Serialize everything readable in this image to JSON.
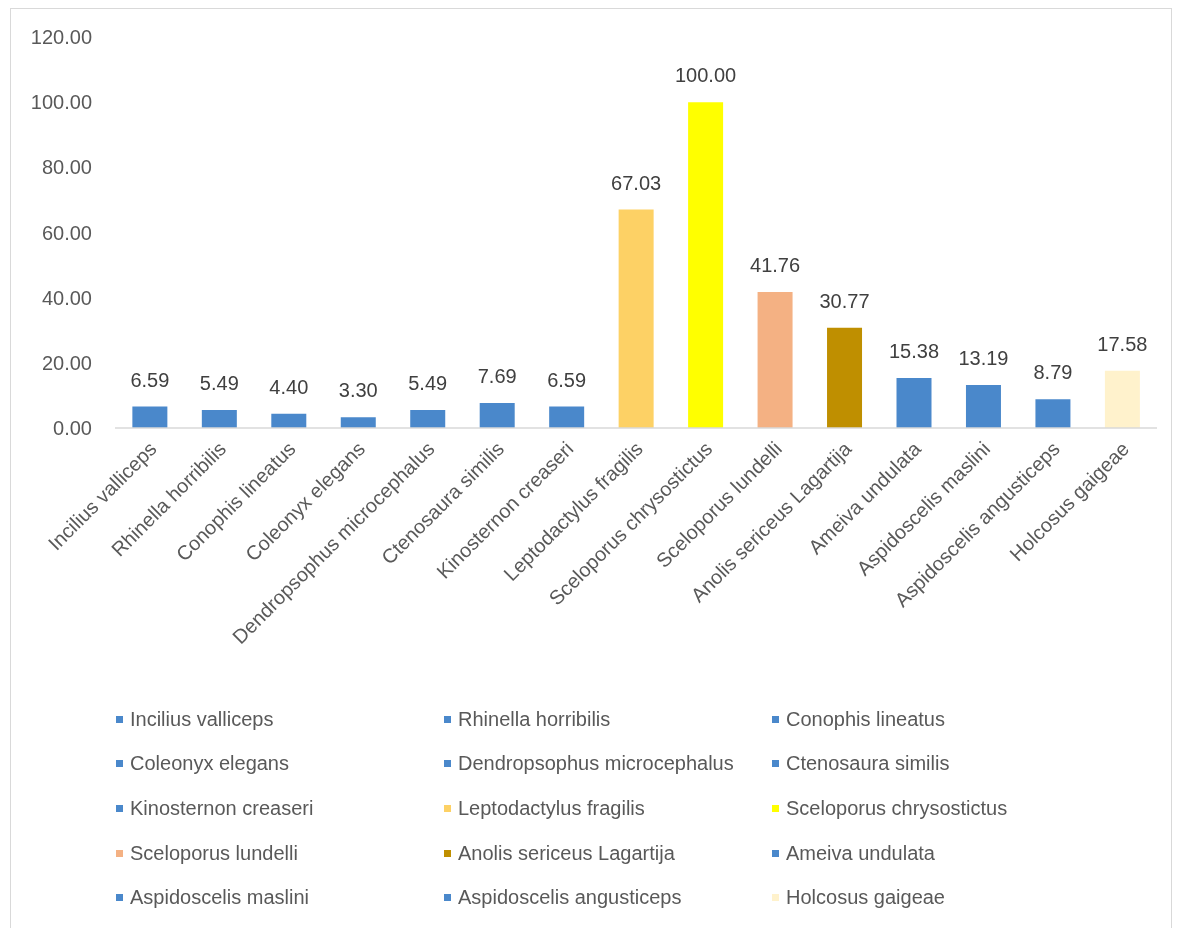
{
  "chart_data": {
    "type": "bar",
    "stacked": true,
    "categories": [
      "Incilius valliceps",
      "Rhinella horribilis",
      "Conophis lineatus",
      "Coleonyx elegans",
      "Dendropsophus microcephalus",
      "Ctenosaura similis",
      "Kinosternon creaseri",
      "Leptodactylus fragilis",
      "Sceloporus chrysostictus",
      "Sceloporus lundelli",
      "Anolis sericeus Lagartija",
      "Ameiva undulata",
      "Aspidoscelis maslini",
      "Aspidoscelis angusticeps",
      "Holcosus gaigeae"
    ],
    "series": [
      {
        "name": "Incilius valliceps",
        "color": "#4a88cb",
        "values": [
          6.59,
          null,
          null,
          null,
          null,
          null,
          null,
          null,
          null,
          null,
          null,
          null,
          null,
          null,
          null
        ],
        "value_labels": [
          "6.59",
          null,
          null,
          null,
          null,
          null,
          null,
          null,
          null,
          null,
          null,
          null,
          null,
          null,
          null
        ]
      },
      {
        "name": "Rhinella horribilis",
        "color": "#4a88cb",
        "values": [
          null,
          5.49,
          null,
          null,
          null,
          null,
          null,
          null,
          null,
          null,
          null,
          null,
          null,
          null,
          null
        ],
        "value_labels": [
          null,
          "5.49",
          null,
          null,
          null,
          null,
          null,
          null,
          null,
          null,
          null,
          null,
          null,
          null,
          null
        ]
      },
      {
        "name": "Conophis lineatus",
        "color": "#4a88cb",
        "values": [
          null,
          null,
          4.4,
          null,
          null,
          null,
          null,
          null,
          null,
          null,
          null,
          null,
          null,
          null,
          null
        ],
        "value_labels": [
          null,
          null,
          "4.40",
          null,
          null,
          null,
          null,
          null,
          null,
          null,
          null,
          null,
          null,
          null,
          null
        ]
      },
      {
        "name": "Coleonyx elegans",
        "color": "#4a88cb",
        "values": [
          null,
          null,
          null,
          3.3,
          null,
          null,
          null,
          null,
          null,
          null,
          null,
          null,
          null,
          null,
          null
        ],
        "value_labels": [
          null,
          null,
          null,
          "3.30",
          null,
          null,
          null,
          null,
          null,
          null,
          null,
          null,
          null,
          null,
          null
        ]
      },
      {
        "name": "Dendropsophus microcephalus",
        "color": "#4a88cb",
        "values": [
          null,
          null,
          null,
          null,
          5.49,
          null,
          null,
          null,
          null,
          null,
          null,
          null,
          null,
          null,
          null
        ],
        "value_labels": [
          null,
          null,
          null,
          null,
          "5.49",
          null,
          null,
          null,
          null,
          null,
          null,
          null,
          null,
          null,
          null
        ]
      },
      {
        "name": "Ctenosaura similis",
        "color": "#4a88cb",
        "values": [
          null,
          null,
          null,
          null,
          null,
          7.69,
          null,
          null,
          null,
          null,
          null,
          null,
          null,
          null,
          null
        ],
        "value_labels": [
          null,
          null,
          null,
          null,
          null,
          "7.69",
          null,
          null,
          null,
          null,
          null,
          null,
          null,
          null,
          null
        ]
      },
      {
        "name": "Kinosternon creaseri",
        "color": "#4a88cb",
        "values": [
          null,
          null,
          null,
          null,
          null,
          null,
          6.59,
          null,
          null,
          null,
          null,
          null,
          null,
          null,
          null
        ],
        "value_labels": [
          null,
          null,
          null,
          null,
          null,
          null,
          "6.59",
          null,
          null,
          null,
          null,
          null,
          null,
          null,
          null
        ]
      },
      {
        "name": "Leptodactylus fragilis",
        "color": "#fdd165",
        "values": [
          null,
          null,
          null,
          null,
          null,
          null,
          null,
          67.03,
          null,
          null,
          null,
          null,
          null,
          null,
          null
        ],
        "value_labels": [
          null,
          null,
          null,
          null,
          null,
          null,
          null,
          "67.03",
          null,
          null,
          null,
          null,
          null,
          null,
          null
        ]
      },
      {
        "name": "Sceloporus chrysostictus",
        "color": "#ffff00",
        "values": [
          null,
          null,
          null,
          null,
          null,
          null,
          null,
          null,
          100,
          null,
          null,
          null,
          null,
          null,
          null
        ],
        "value_labels": [
          null,
          null,
          null,
          null,
          null,
          null,
          null,
          null,
          "100.00",
          null,
          null,
          null,
          null,
          null,
          null
        ]
      },
      {
        "name": "Sceloporus lundelli",
        "color": "#f4b183",
        "values": [
          null,
          null,
          null,
          null,
          null,
          null,
          null,
          null,
          null,
          41.76,
          null,
          null,
          null,
          null,
          null
        ],
        "value_labels": [
          null,
          null,
          null,
          null,
          null,
          null,
          null,
          null,
          null,
          "41.76",
          null,
          null,
          null,
          null,
          null
        ]
      },
      {
        "name": "Anolis sericeus Lagartija",
        "color": "#bf8f00",
        "values": [
          null,
          null,
          null,
          null,
          null,
          null,
          null,
          null,
          null,
          null,
          30.77,
          null,
          null,
          null,
          null
        ],
        "value_labels": [
          null,
          null,
          null,
          null,
          null,
          null,
          null,
          null,
          null,
          null,
          "30.77",
          null,
          null,
          null,
          null
        ]
      },
      {
        "name": "Ameiva undulata",
        "color": "#4a88cb",
        "values": [
          null,
          null,
          null,
          null,
          null,
          null,
          null,
          null,
          null,
          null,
          null,
          15.38,
          null,
          null,
          null
        ],
        "value_labels": [
          null,
          null,
          null,
          null,
          null,
          null,
          null,
          null,
          null,
          null,
          null,
          "15.38",
          null,
          null,
          null
        ]
      },
      {
        "name": "Aspidoscelis maslini",
        "color": "#4a88cb",
        "values": [
          null,
          null,
          null,
          null,
          null,
          null,
          null,
          null,
          null,
          null,
          null,
          null,
          13.19,
          null,
          null
        ],
        "value_labels": [
          null,
          null,
          null,
          null,
          null,
          null,
          null,
          null,
          null,
          null,
          null,
          null,
          "13.19",
          null,
          null
        ]
      },
      {
        "name": "Aspidoscelis angusticeps",
        "color": "#4a88cb",
        "values": [
          null,
          null,
          null,
          null,
          null,
          null,
          null,
          null,
          null,
          null,
          null,
          null,
          null,
          8.79,
          null
        ],
        "value_labels": [
          null,
          null,
          null,
          null,
          null,
          null,
          null,
          null,
          null,
          null,
          null,
          null,
          null,
          "8.79",
          null
        ]
      },
      {
        "name": "Holcosus gaigeae",
        "color": "#fff2cc",
        "values": [
          null,
          null,
          null,
          null,
          null,
          null,
          null,
          null,
          null,
          null,
          null,
          null,
          null,
          null,
          17.58
        ],
        "value_labels": [
          null,
          null,
          null,
          null,
          null,
          null,
          null,
          null,
          null,
          null,
          null,
          null,
          null,
          null,
          "17.58"
        ]
      }
    ],
    "ylim": [
      0,
      120
    ],
    "yticks": [
      {
        "value": 0,
        "label": "0.00"
      },
      {
        "value": 20,
        "label": "20.00"
      },
      {
        "value": 40,
        "label": "40.00"
      },
      {
        "value": 60,
        "label": "60.00"
      },
      {
        "value": 80,
        "label": "80.00"
      },
      {
        "value": 100,
        "label": "100.00"
      },
      {
        "value": 120,
        "label": "120.00"
      }
    ],
    "legend": "bottom"
  }
}
